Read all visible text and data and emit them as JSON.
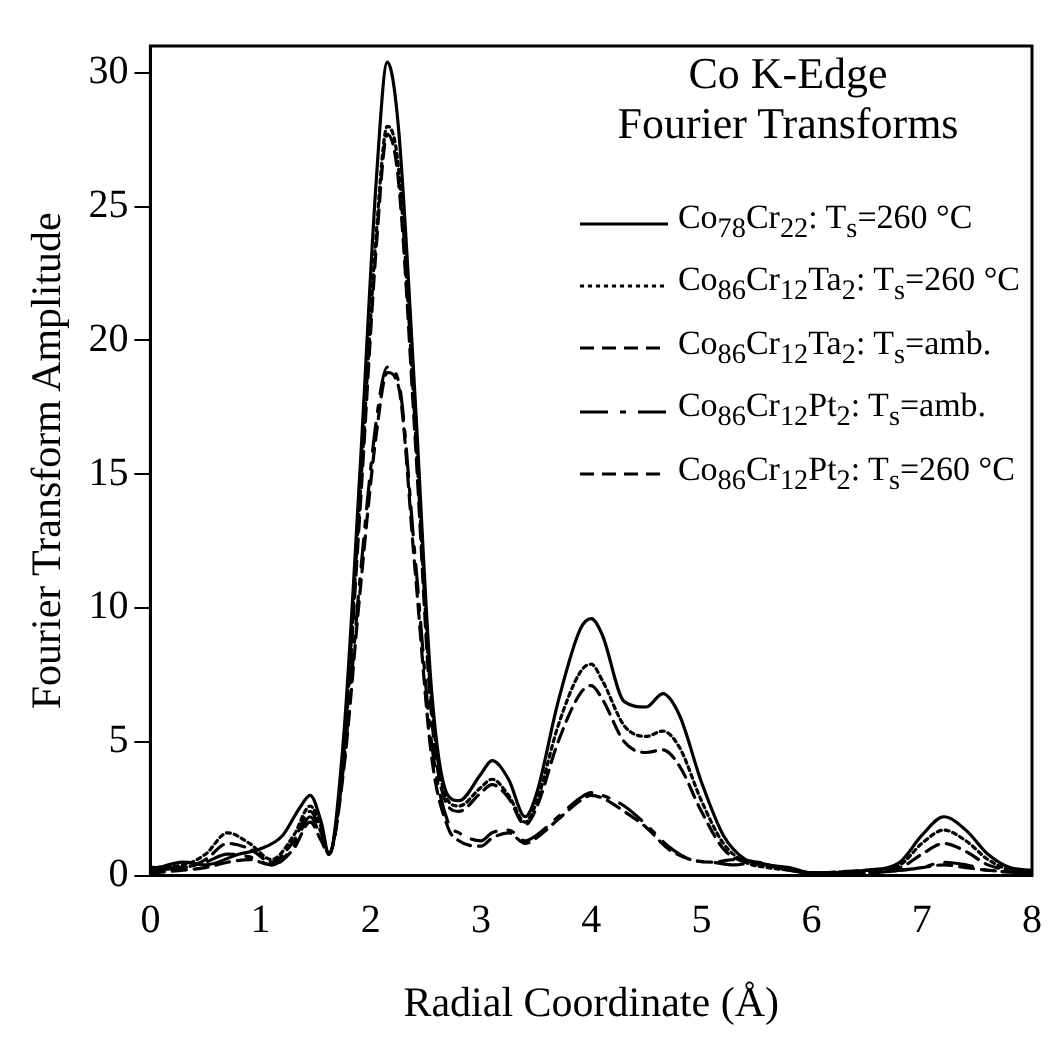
{
  "chart_data": {
    "type": "line",
    "title": "Co K-Edge\nFourier Transforms",
    "xlabel": "Radial Coordinate (Å)",
    "ylabel": "Fourier Transform Amplitude",
    "xlim": [
      0,
      8
    ],
    "ylim": [
      0,
      31
    ],
    "xticks": [
      0,
      1,
      2,
      3,
      4,
      5,
      6,
      7,
      8
    ],
    "yticks": [
      0,
      5,
      10,
      15,
      20,
      25,
      30
    ],
    "grid": false,
    "legend": "top right",
    "marker": "none",
    "series": [
      {
        "name": "Co$_{78}$Cr$_{22}$: T$_{s}$=260 °C",
        "color": "#000000",
        "line_style": "solid",
        "x": [
          0,
          0.3,
          0.5,
          0.8,
          1.0,
          1.2,
          1.35,
          1.45,
          1.55,
          1.62,
          1.75,
          1.9,
          2.05,
          2.15,
          2.25,
          2.4,
          2.55,
          2.7,
          2.8,
          3.0,
          3.1,
          3.25,
          3.4,
          3.5,
          3.7,
          3.9,
          4.0,
          4.1,
          4.3,
          4.5,
          4.65,
          4.8,
          5.0,
          5.2,
          5.4,
          5.6,
          5.8,
          6.0,
          6.5,
          6.8,
          7.0,
          7.2,
          7.4,
          7.6,
          7.8,
          8.0
        ],
        "values": [
          0.2,
          0.5,
          0.4,
          0.8,
          1.0,
          1.5,
          2.5,
          3.0,
          2.0,
          0.8,
          5,
          15,
          26,
          30.4,
          28,
          18,
          7,
          3,
          2.8,
          3.8,
          4.3,
          3.6,
          2.2,
          3,
          6.5,
          9.2,
          9.6,
          9,
          6.5,
          6.3,
          6.8,
          6,
          3.5,
          1.5,
          0.6,
          0.4,
          0.3,
          0.1,
          0.2,
          0.5,
          1.5,
          2.2,
          1.7,
          0.8,
          0.3,
          0.2
        ]
      },
      {
        "name": "Co$_{86}$Cr$_{12}$Ta$_{2}$: T$_{s}$=260 °C",
        "color": "#000000",
        "line_style": "dotted",
        "x": [
          0,
          0.3,
          0.5,
          0.7,
          0.9,
          1.1,
          1.3,
          1.45,
          1.55,
          1.62,
          1.75,
          1.9,
          2.05,
          2.15,
          2.25,
          2.4,
          2.55,
          2.7,
          2.8,
          3.0,
          3.1,
          3.25,
          3.4,
          3.5,
          3.7,
          3.9,
          4.0,
          4.1,
          4.3,
          4.5,
          4.65,
          4.8,
          5.0,
          5.2,
          5.4,
          5.6,
          5.8,
          6.0,
          6.5,
          6.8,
          7.0,
          7.2,
          7.4,
          7.6,
          7.8,
          8.0
        ],
        "values": [
          0.3,
          0.4,
          0.8,
          1.6,
          1.2,
          0.6,
          1.5,
          2.6,
          1.8,
          0.8,
          4.5,
          14,
          24,
          28,
          26.5,
          17,
          6.5,
          2.8,
          2.6,
          3.3,
          3.6,
          3.0,
          2.0,
          2.7,
          5.6,
          7.6,
          7.9,
          7.3,
          5.6,
          5.2,
          5.4,
          4.8,
          2.8,
          1.2,
          0.5,
          0.3,
          0.2,
          0.1,
          0.2,
          0.4,
          1.2,
          1.7,
          1.3,
          0.6,
          0.2,
          0.1
        ]
      },
      {
        "name": "Co$_{86}$Cr$_{12}$Ta$_{2}$: T$_{s}$=amb.",
        "color": "#000000",
        "line_style": "dashed",
        "x": [
          0,
          0.3,
          0.5,
          0.7,
          0.9,
          1.1,
          1.3,
          1.45,
          1.55,
          1.62,
          1.75,
          1.9,
          2.05,
          2.15,
          2.25,
          2.4,
          2.55,
          2.7,
          2.8,
          3.0,
          3.1,
          3.25,
          3.4,
          3.5,
          3.7,
          3.9,
          4.0,
          4.1,
          4.3,
          4.5,
          4.65,
          4.8,
          5.0,
          5.2,
          5.4,
          5.6,
          5.8,
          6.0,
          6.5,
          6.8,
          7.0,
          7.2,
          7.4,
          7.6,
          7.8,
          8.0
        ],
        "values": [
          0.3,
          0.3,
          0.6,
          1.2,
          1.0,
          0.5,
          1.3,
          2.4,
          1.6,
          0.8,
          4.3,
          13.5,
          23.5,
          27.7,
          26,
          16.5,
          6,
          2.6,
          2.4,
          3.1,
          3.4,
          2.9,
          1.9,
          2.5,
          5.0,
          6.8,
          7.1,
          6.6,
          5.0,
          4.6,
          4.7,
          4.1,
          2.4,
          1.0,
          0.5,
          0.4,
          0.2,
          0.1,
          0.2,
          0.3,
          0.8,
          1.2,
          0.9,
          0.4,
          0.2,
          0.1
        ]
      },
      {
        "name": "Co$_{86}$Cr$_{12}$Pt$_{2}$: T$_{s}$=amb.",
        "color": "#000000",
        "line_style": "dashed",
        "x": [
          0,
          0.3,
          0.5,
          0.7,
          0.9,
          1.1,
          1.3,
          1.45,
          1.55,
          1.62,
          1.75,
          1.9,
          2.05,
          2.15,
          2.25,
          2.4,
          2.55,
          2.7,
          2.8,
          3.0,
          3.1,
          3.25,
          3.4,
          3.5,
          3.7,
          3.9,
          4.0,
          4.1,
          4.3,
          4.5,
          4.7,
          4.9,
          5.1,
          5.3,
          5.5,
          5.7,
          6.0,
          6.5,
          6.8,
          7.0,
          7.2,
          7.4,
          7.6,
          8.0
        ],
        "values": [
          0.2,
          0.3,
          0.5,
          0.8,
          0.7,
          0.4,
          1.1,
          2.2,
          1.4,
          0.8,
          4,
          11,
          17,
          19,
          18.5,
          12,
          5,
          2,
          1.6,
          1.3,
          1.6,
          1.7,
          1.3,
          1.5,
          2.2,
          2.9,
          3.1,
          3.0,
          2.6,
          1.9,
          1.1,
          0.6,
          0.5,
          0.4,
          0.5,
          0.3,
          0.1,
          0.1,
          0.2,
          0.3,
          0.5,
          0.4,
          0.2,
          0.1
        ]
      },
      {
        "name": "Co$_{86}$Cr$_{12}$Pt$_{2}$: T$_{s}$=260 °C",
        "color": "#000000",
        "line_style": "dashed",
        "x": [
          0,
          0.3,
          0.5,
          0.7,
          0.9,
          1.1,
          1.3,
          1.45,
          1.55,
          1.62,
          1.75,
          1.9,
          2.05,
          2.15,
          2.25,
          2.4,
          2.55,
          2.7,
          2.8,
          3.0,
          3.1,
          3.25,
          3.4,
          3.5,
          3.7,
          3.9,
          4.0,
          4.1,
          4.3,
          4.5,
          4.7,
          4.9,
          5.1,
          5.3,
          5.5,
          5.7,
          6.0,
          6.5,
          6.8,
          7.0,
          7.2,
          7.4,
          7.6,
          8.0
        ],
        "values": [
          0.1,
          0.2,
          0.3,
          0.5,
          0.6,
          0.4,
          1.0,
          2.0,
          1.3,
          0.8,
          3.8,
          10.5,
          16.5,
          18.8,
          18.3,
          11.5,
          4.5,
          1.8,
          1.3,
          1.1,
          1.4,
          1.6,
          1.2,
          1.4,
          2.1,
          2.8,
          3.0,
          2.9,
          2.4,
          1.8,
          1.0,
          0.6,
          0.5,
          0.6,
          0.5,
          0.3,
          0.1,
          0.1,
          0.2,
          0.3,
          0.4,
          0.3,
          0.2,
          0.1
        ]
      }
    ]
  }
}
